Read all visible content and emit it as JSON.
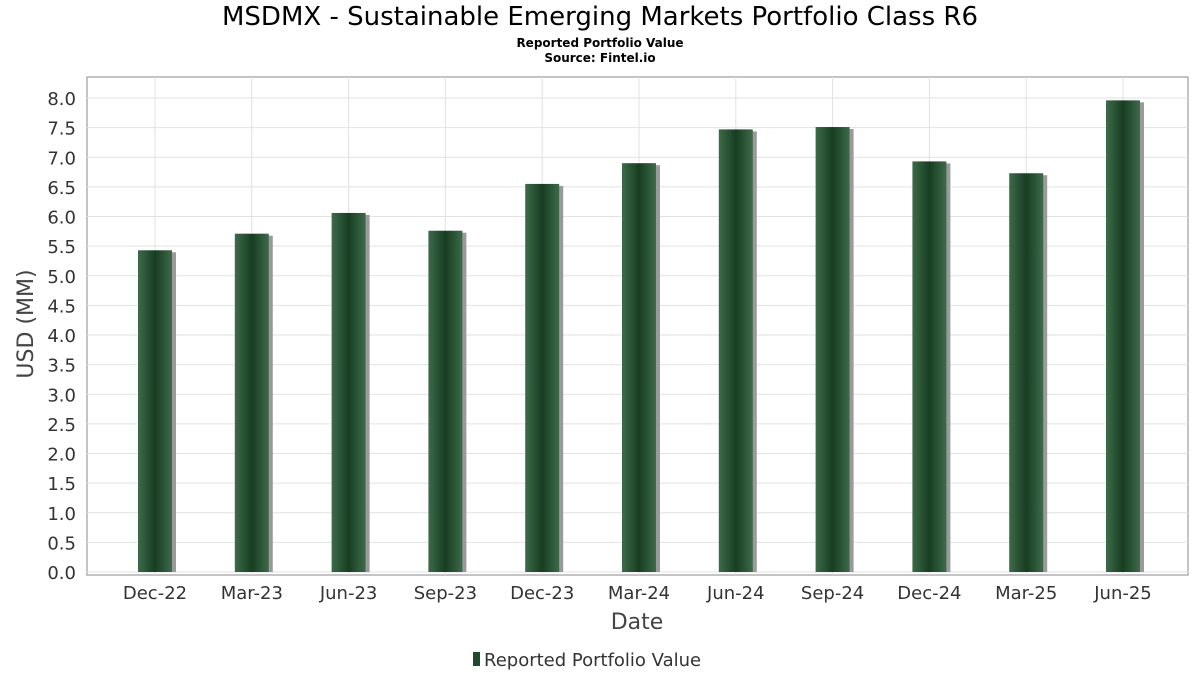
{
  "chart_data": {
    "type": "bar",
    "title": "MSDMX - Sustainable Emerging Markets Portfolio Class R6",
    "subtitle_lines": [
      "Reported Portfolio Value",
      "Source: Fintel.io"
    ],
    "xlabel": "Date",
    "ylabel": "USD (MM)",
    "categories": [
      "Dec-22",
      "Mar-23",
      "Jun-23",
      "Sep-23",
      "Dec-23",
      "Mar-24",
      "Jun-24",
      "Sep-24",
      "Dec-24",
      "Mar-25",
      "Jun-25"
    ],
    "series": [
      {
        "name": "Reported Portfolio Value",
        "color": "#1f4a2c",
        "values": [
          5.43,
          5.71,
          6.06,
          5.76,
          6.55,
          6.9,
          7.47,
          7.51,
          6.93,
          6.73,
          7.96
        ]
      }
    ],
    "ylim": [
      0,
      8.0
    ],
    "yticks": [
      "0.0",
      "0.5",
      "1.0",
      "1.5",
      "2.0",
      "2.5",
      "3.0",
      "3.5",
      "4.0",
      "4.5",
      "5.0",
      "5.5",
      "6.0",
      "6.5",
      "7.0",
      "7.5",
      "8.0"
    ],
    "grid": true,
    "legend_position": "bottom"
  }
}
